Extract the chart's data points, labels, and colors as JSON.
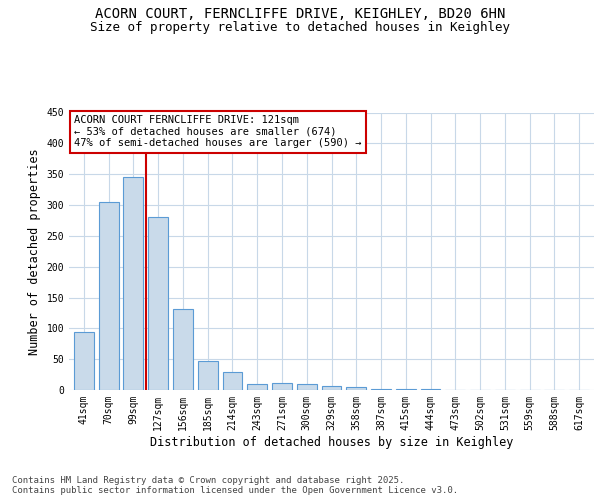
{
  "title_line1": "ACORN COURT, FERNCLIFFE DRIVE, KEIGHLEY, BD20 6HN",
  "title_line2": "Size of property relative to detached houses in Keighley",
  "xlabel": "Distribution of detached houses by size in Keighley",
  "ylabel": "Number of detached properties",
  "categories": [
    "41sqm",
    "70sqm",
    "99sqm",
    "127sqm",
    "156sqm",
    "185sqm",
    "214sqm",
    "243sqm",
    "271sqm",
    "300sqm",
    "329sqm",
    "358sqm",
    "387sqm",
    "415sqm",
    "444sqm",
    "473sqm",
    "502sqm",
    "531sqm",
    "559sqm",
    "588sqm",
    "617sqm"
  ],
  "values": [
    94,
    305,
    345,
    280,
    131,
    47,
    30,
    10,
    12,
    10,
    6,
    5,
    1,
    1,
    1,
    0,
    0,
    0,
    0,
    0,
    0
  ],
  "bar_color": "#c9daea",
  "bar_edge_color": "#5b9bd5",
  "bar_width": 0.8,
  "red_line_x": 2.5,
  "red_line_color": "#cc0000",
  "annotation_text": "ACORN COURT FERNCLIFFE DRIVE: 121sqm\n← 53% of detached houses are smaller (674)\n47% of semi-detached houses are larger (590) →",
  "annotation_box_color": "#ffffff",
  "annotation_box_edge": "#cc0000",
  "ylim": [
    0,
    450
  ],
  "yticks": [
    0,
    50,
    100,
    150,
    200,
    250,
    300,
    350,
    400,
    450
  ],
  "background_color": "#ffffff",
  "grid_color": "#c8d8e8",
  "footer_text": "Contains HM Land Registry data © Crown copyright and database right 2025.\nContains public sector information licensed under the Open Government Licence v3.0.",
  "title_fontsize": 10,
  "subtitle_fontsize": 9,
  "axis_label_fontsize": 8.5,
  "tick_fontsize": 7,
  "annotation_fontsize": 7.5,
  "footer_fontsize": 6.5
}
